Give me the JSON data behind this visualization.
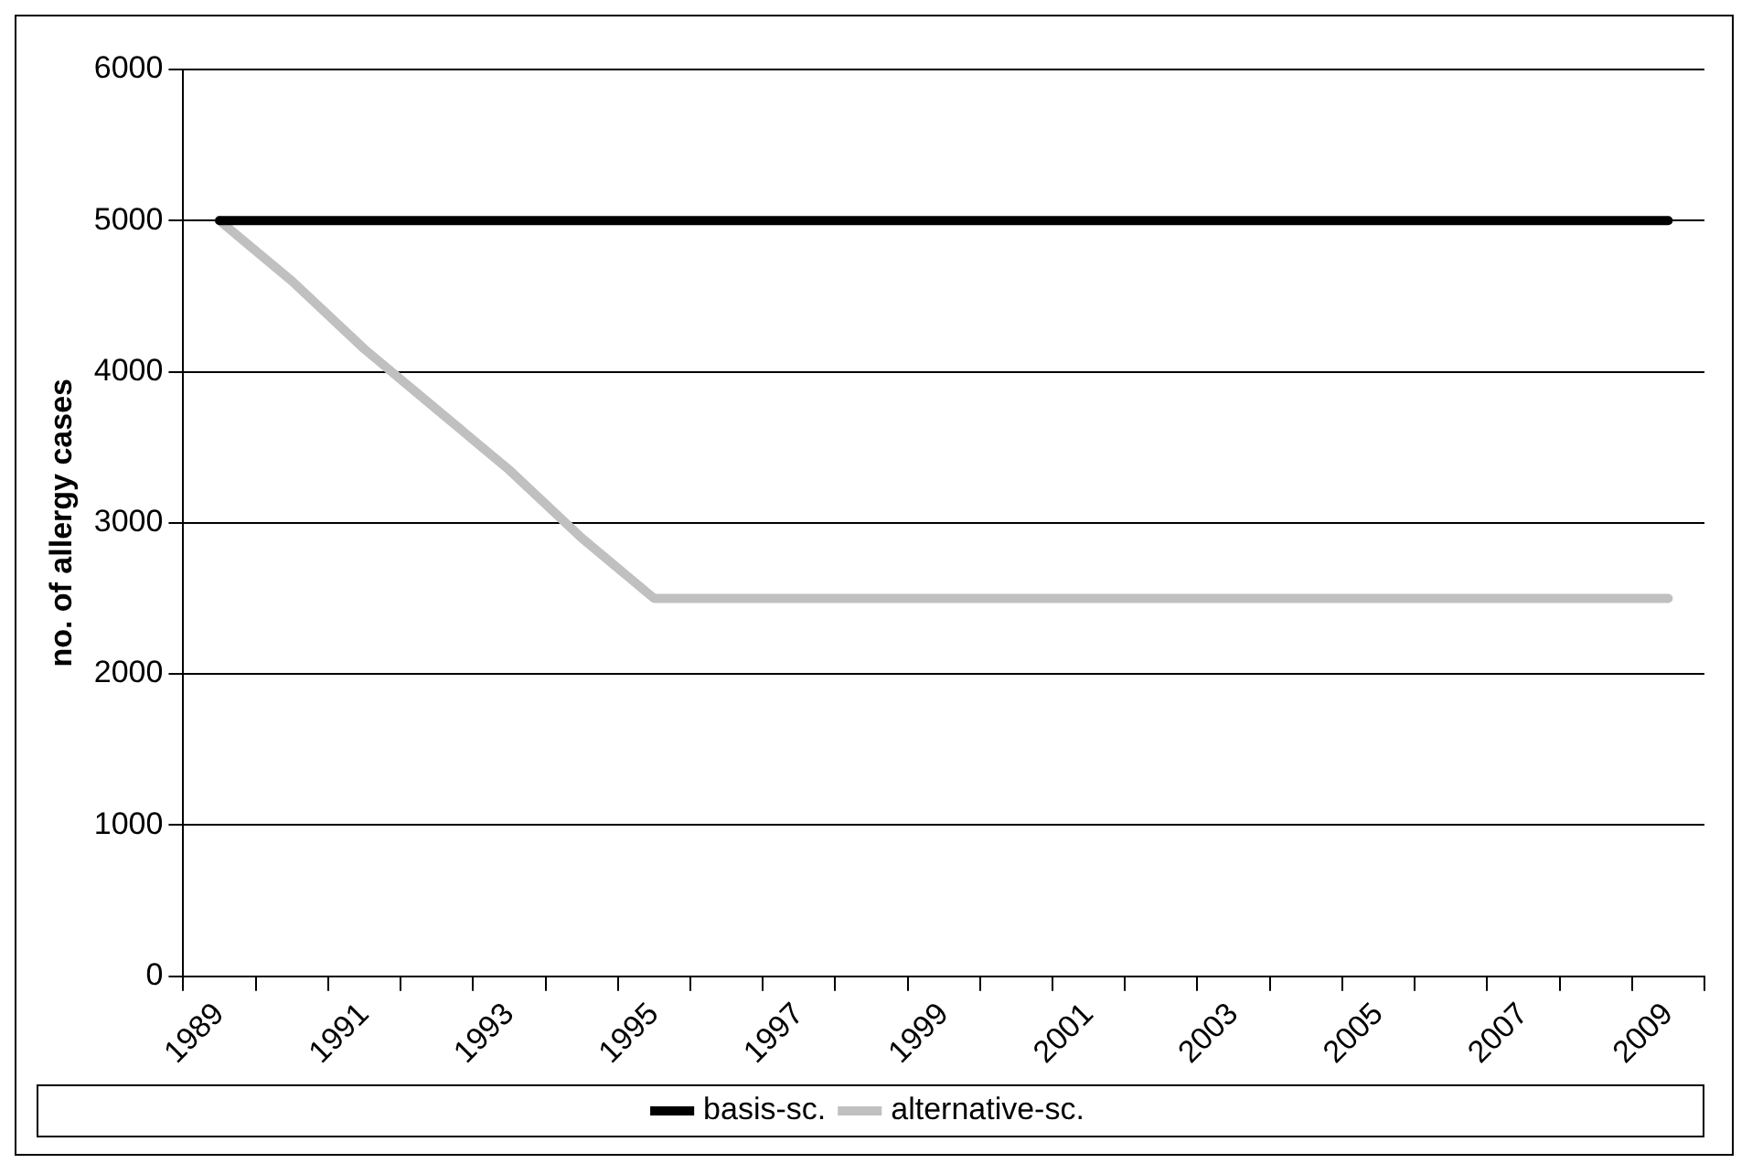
{
  "chart_data": {
    "type": "line",
    "ylabel": "no. of allergy cases",
    "categories": [
      "1989",
      null,
      "1991",
      null,
      "1993",
      null,
      "1995",
      null,
      "1997",
      null,
      "1999",
      null,
      "2001",
      null,
      "2003",
      null,
      "2005",
      null,
      "2007",
      null,
      "2009"
    ],
    "series": [
      {
        "name": "basis-sc.",
        "color": "#000000",
        "values": [
          5000,
          5000,
          5000,
          5000,
          5000,
          5000,
          5000,
          5000,
          5000,
          5000,
          5000,
          5000,
          5000,
          5000,
          5000,
          5000,
          5000,
          5000,
          5000,
          5000,
          5000
        ]
      },
      {
        "name": "alternative-sc.",
        "color": "#c0c0c0",
        "values": [
          5000,
          4600,
          4150,
          3750,
          3350,
          2900,
          2500,
          2500,
          2500,
          2500,
          2500,
          2500,
          2500,
          2500,
          2500,
          2500,
          2500,
          2500,
          2500,
          2500,
          2500
        ]
      }
    ],
    "ylim": [
      0,
      6000
    ],
    "yticks": [
      0,
      1000,
      2000,
      3000,
      4000,
      5000,
      6000
    ],
    "grid": "y",
    "legend": "bottom",
    "marker": "none",
    "line_style": "solid"
  }
}
